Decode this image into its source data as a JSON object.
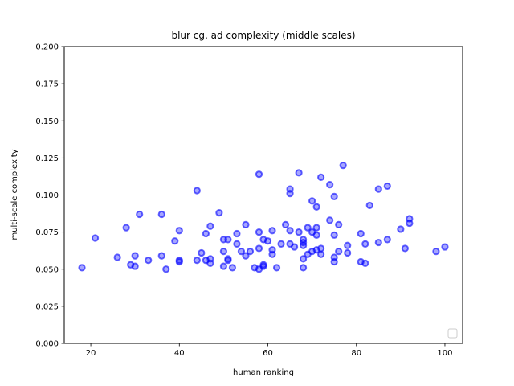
{
  "chart_data": {
    "type": "scatter",
    "title": "blur cg, ad complexity (middle scales)",
    "xlabel": "human ranking",
    "ylabel": "multi-scale complexity",
    "xlim": [
      14,
      104
    ],
    "ylim": [
      0.0,
      0.2
    ],
    "xticks": [
      "20",
      "40",
      "60",
      "80",
      "100"
    ],
    "yticks": [
      "0.000",
      "0.025",
      "0.050",
      "0.075",
      "0.100",
      "0.125",
      "0.150",
      "0.175",
      "0.200"
    ],
    "grid": false,
    "legend": "lower-right (empty)",
    "marker_color": "#0000ff",
    "points": [
      [
        18,
        0.051
      ],
      [
        21,
        0.071
      ],
      [
        26,
        0.058
      ],
      [
        28,
        0.078
      ],
      [
        29,
        0.053
      ],
      [
        30,
        0.052
      ],
      [
        30,
        0.059
      ],
      [
        31,
        0.087
      ],
      [
        33,
        0.056
      ],
      [
        36,
        0.087
      ],
      [
        36,
        0.059
      ],
      [
        37,
        0.05
      ],
      [
        39,
        0.069
      ],
      [
        40,
        0.055
      ],
      [
        40,
        0.076
      ],
      [
        40,
        0.056
      ],
      [
        44,
        0.103
      ],
      [
        44,
        0.056
      ],
      [
        45,
        0.061
      ],
      [
        46,
        0.074
      ],
      [
        46,
        0.056
      ],
      [
        47,
        0.079
      ],
      [
        47,
        0.054
      ],
      [
        47,
        0.057
      ],
      [
        49,
        0.088
      ],
      [
        50,
        0.062
      ],
      [
        50,
        0.052
      ],
      [
        50,
        0.07
      ],
      [
        51,
        0.07
      ],
      [
        51,
        0.056
      ],
      [
        51,
        0.057
      ],
      [
        52,
        0.051
      ],
      [
        53,
        0.074
      ],
      [
        53,
        0.067
      ],
      [
        54,
        0.062
      ],
      [
        55,
        0.08
      ],
      [
        55,
        0.059
      ],
      [
        56,
        0.062
      ],
      [
        57,
        0.051
      ],
      [
        58,
        0.114
      ],
      [
        58,
        0.075
      ],
      [
        58,
        0.064
      ],
      [
        58,
        0.05
      ],
      [
        59,
        0.07
      ],
      [
        59,
        0.052
      ],
      [
        59,
        0.053
      ],
      [
        60,
        0.069
      ],
      [
        61,
        0.076
      ],
      [
        61,
        0.063
      ],
      [
        61,
        0.06
      ],
      [
        62,
        0.051
      ],
      [
        63,
        0.067
      ],
      [
        64,
        0.08
      ],
      [
        65,
        0.104
      ],
      [
        65,
        0.101
      ],
      [
        65,
        0.076
      ],
      [
        65,
        0.067
      ],
      [
        66,
        0.065
      ],
      [
        67,
        0.115
      ],
      [
        67,
        0.075
      ],
      [
        68,
        0.07
      ],
      [
        68,
        0.068
      ],
      [
        68,
        0.066
      ],
      [
        68,
        0.057
      ],
      [
        68,
        0.051
      ],
      [
        69,
        0.078
      ],
      [
        69,
        0.06
      ],
      [
        70,
        0.096
      ],
      [
        70,
        0.075
      ],
      [
        70,
        0.062
      ],
      [
        71,
        0.092
      ],
      [
        71,
        0.078
      ],
      [
        71,
        0.073
      ],
      [
        71,
        0.063
      ],
      [
        72,
        0.112
      ],
      [
        72,
        0.064
      ],
      [
        72,
        0.06
      ],
      [
        74,
        0.107
      ],
      [
        74,
        0.083
      ],
      [
        75,
        0.099
      ],
      [
        75,
        0.073
      ],
      [
        75,
        0.058
      ],
      [
        75,
        0.055
      ],
      [
        76,
        0.08
      ],
      [
        76,
        0.062
      ],
      [
        77,
        0.12
      ],
      [
        78,
        0.066
      ],
      [
        78,
        0.061
      ],
      [
        81,
        0.074
      ],
      [
        81,
        0.055
      ],
      [
        82,
        0.067
      ],
      [
        82,
        0.054
      ],
      [
        83,
        0.093
      ],
      [
        85,
        0.104
      ],
      [
        85,
        0.068
      ],
      [
        87,
        0.106
      ],
      [
        87,
        0.07
      ],
      [
        90,
        0.077
      ],
      [
        91,
        0.064
      ],
      [
        92,
        0.084
      ],
      [
        92,
        0.081
      ],
      [
        98,
        0.062
      ],
      [
        100,
        0.065
      ]
    ]
  }
}
